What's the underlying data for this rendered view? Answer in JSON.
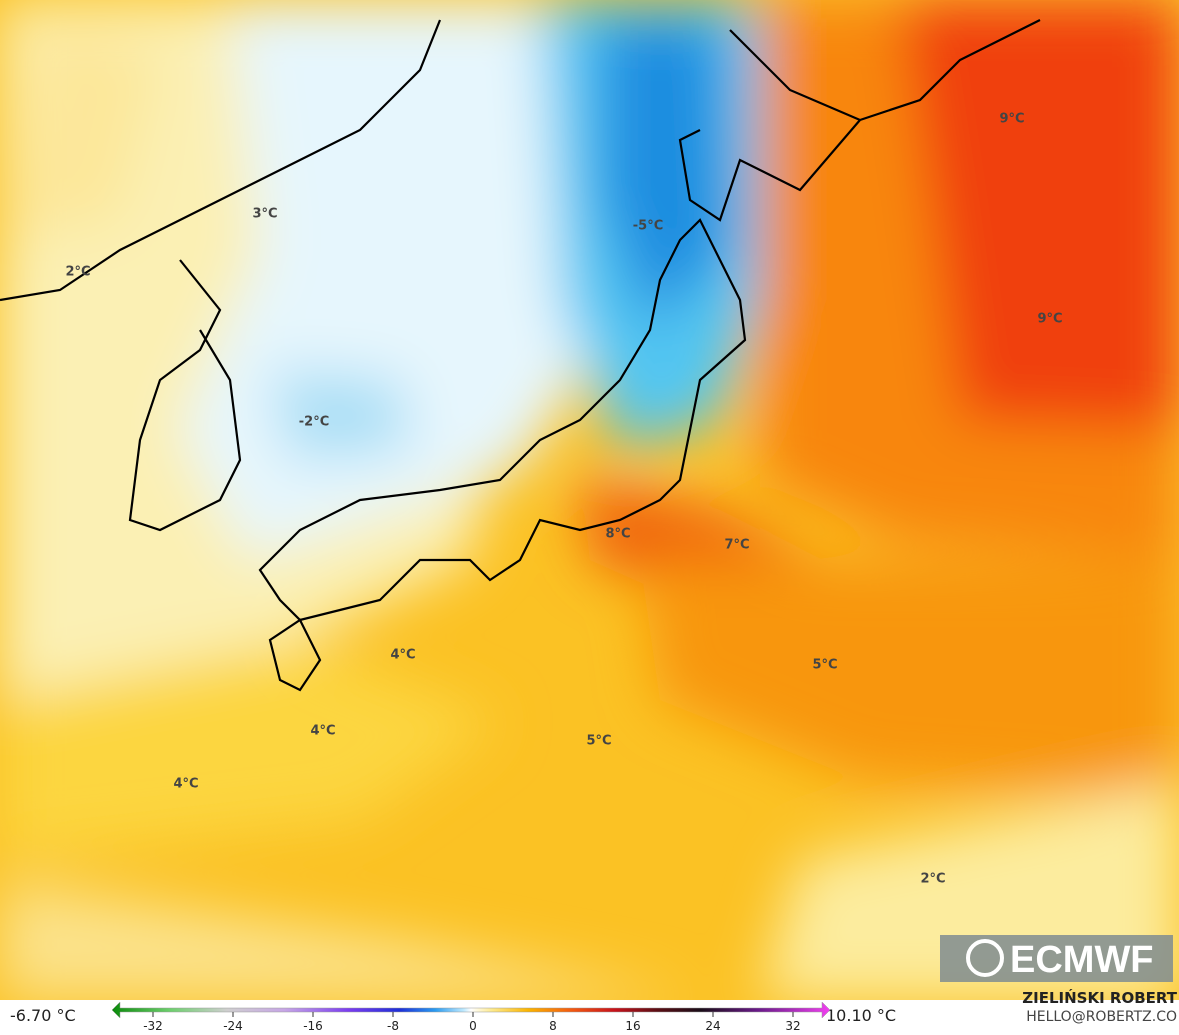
{
  "map": {
    "labels": [
      "9°C",
      "9°C",
      "3°C",
      "2°C",
      "-5°C",
      "-2°C",
      "8°C",
      "7°C",
      "4°C",
      "4°C",
      "5°C",
      "4°C",
      "5°C",
      "2°C"
    ],
    "logo": "ECMWF",
    "author": "ZIELIŃSKI ROBERT",
    "contact": "HELLO@ROBERTZ.CO"
  },
  "colorbar": {
    "min_label": "-6.70 °C",
    "max_label": "10.10 °C",
    "lim": [
      -35,
      35
    ],
    "ticks": [
      -32,
      -24,
      -16,
      -8,
      0,
      8,
      16,
      24,
      32
    ]
  }
}
